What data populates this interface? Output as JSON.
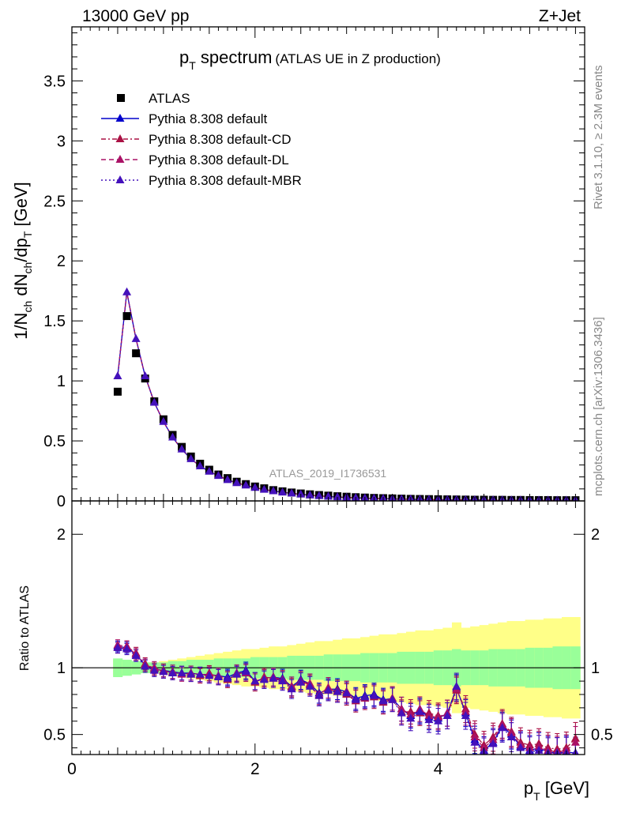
{
  "header": {
    "left": "13000 GeV pp",
    "right": "Z+Jet"
  },
  "title": {
    "main": "p",
    "sub": "T",
    "rest": " spectrum",
    "small": "(ATLAS UE in Z production)"
  },
  "side_labels": {
    "rivet": "Rivet 3.1.10, ≥ 2.3M events",
    "mcplots": "mcplots.cern.ch [arXiv:1306.3436]"
  },
  "watermark": "ATLAS_2019_I1736531",
  "axes": {
    "ylabel_top": "1/N_ch dN_ch/dp_T [GeV]",
    "ylabel_bottom": "Ratio to ATLAS",
    "xlabel": "p_T [GeV]",
    "x_ticks": [
      "0",
      "2",
      "4"
    ],
    "y_ticks_top": [
      "0",
      "0.5",
      "1",
      "1.5",
      "2",
      "2.5",
      "3",
      "3.5"
    ],
    "y_ticks_bottom": [
      "0.5",
      "1",
      "2"
    ]
  },
  "legend": [
    {
      "label": "ATLAS",
      "color": "#000000",
      "marker": "square",
      "dash": ""
    },
    {
      "label": "Pythia 8.308 default",
      "color": "#0000cc",
      "marker": "triangle",
      "dash": ""
    },
    {
      "label": "Pythia 8.308 default-CD",
      "color": "#aa1144",
      "marker": "triangle",
      "dash": "6,3,2,3"
    },
    {
      "label": "Pythia 8.308 default-DL",
      "color": "#aa1166",
      "marker": "triangle",
      "dash": "6,4"
    },
    {
      "label": "Pythia 8.308 default-MBR",
      "color": "#4411bb",
      "marker": "triangle",
      "dash": "2,3"
    }
  ],
  "chart_data": {
    "type": "scatter",
    "xlim": [
      0,
      5.6
    ],
    "ylim_top": [
      0,
      3.95
    ],
    "ylim_bottom": [
      0.35,
      2.25
    ],
    "x": [
      0.5,
      0.6,
      0.7,
      0.8,
      0.9,
      1.0,
      1.1,
      1.2,
      1.3,
      1.4,
      1.5,
      1.6,
      1.7,
      1.8,
      1.9,
      2.0,
      2.1,
      2.2,
      2.3,
      2.4,
      2.5,
      2.6,
      2.7,
      2.8,
      2.9,
      3.0,
      3.1,
      3.2,
      3.3,
      3.4,
      3.5,
      3.6,
      3.7,
      3.8,
      3.9,
      4.0,
      4.1,
      4.2,
      4.3,
      4.4,
      4.5,
      4.6,
      4.7,
      4.8,
      4.9,
      5.0,
      5.1,
      5.2,
      5.3,
      5.4,
      5.5
    ],
    "atlas": [
      0.91,
      1.54,
      1.23,
      1.02,
      0.83,
      0.68,
      0.55,
      0.45,
      0.37,
      0.31,
      0.26,
      0.22,
      0.19,
      0.16,
      0.14,
      0.12,
      0.105,
      0.09,
      0.08,
      0.07,
      0.062,
      0.055,
      0.049,
      0.044,
      0.039,
      0.035,
      0.031,
      0.028,
      0.025,
      0.023,
      0.021,
      0.019,
      0.017,
      0.016,
      0.015,
      0.014,
      0.013,
      0.012,
      0.011,
      0.01,
      0.01,
      0.009,
      0.009,
      0.008,
      0.008,
      0.007,
      0.007,
      0.007,
      0.006,
      0.006,
      0.006
    ],
    "mc_top": [
      1.04,
      1.74,
      1.35,
      1.04,
      0.82,
      0.66,
      0.53,
      0.43,
      0.35,
      0.29,
      0.245,
      0.21,
      0.175,
      0.15,
      0.13,
      0.11,
      0.095,
      0.082,
      0.072,
      0.063,
      0.055,
      0.048,
      0.042,
      0.037,
      0.033,
      0.029,
      0.026,
      0.023,
      0.021,
      0.019,
      0.017,
      0.015,
      0.014,
      0.012,
      0.011,
      0.01,
      0.009,
      0.009,
      0.008,
      0.007,
      0.007,
      0.006,
      0.006,
      0.005,
      0.005,
      0.005,
      0.004,
      0.004,
      0.004,
      0.004,
      0.003
    ],
    "ratio_series": [
      {
        "name": "Pythia 8.308 default",
        "values": [
          1.16,
          1.15,
          1.1,
          1.02,
          0.99,
          0.98,
          0.97,
          0.96,
          0.96,
          0.95,
          0.95,
          0.94,
          0.93,
          0.96,
          0.98,
          0.9,
          0.92,
          0.93,
          0.92,
          0.86,
          0.91,
          0.88,
          0.81,
          0.84,
          0.84,
          0.82,
          0.77,
          0.79,
          0.8,
          0.76,
          0.77,
          0.69,
          0.64,
          0.68,
          0.63,
          0.62,
          0.66,
          0.85,
          0.66,
          0.46,
          0.38,
          0.44,
          0.56,
          0.5,
          0.41,
          0.38,
          0.4,
          0.37,
          0.36,
          0.37,
          0.36
        ]
      },
      {
        "name": "Pythia 8.308 default-CD",
        "values": [
          1.15,
          1.16,
          1.11,
          1.03,
          0.99,
          0.98,
          0.96,
          0.96,
          0.95,
          0.94,
          0.96,
          0.93,
          0.91,
          0.95,
          0.97,
          0.89,
          0.93,
          0.92,
          0.91,
          0.85,
          0.9,
          0.87,
          0.79,
          0.83,
          0.83,
          0.8,
          0.75,
          0.77,
          0.78,
          0.74,
          0.76,
          0.67,
          0.67,
          0.66,
          0.66,
          0.64,
          0.64,
          0.83,
          0.69,
          0.5,
          0.42,
          0.48,
          0.58,
          0.52,
          0.44,
          0.42,
          0.43,
          0.4,
          0.39,
          0.4,
          0.47
        ]
      },
      {
        "name": "Pythia 8.308 default-DL",
        "values": [
          1.17,
          1.16,
          1.1,
          1.02,
          1.0,
          0.97,
          0.97,
          0.95,
          0.96,
          0.95,
          0.95,
          0.94,
          0.92,
          0.96,
          0.96,
          0.9,
          0.92,
          0.93,
          0.91,
          0.86,
          0.9,
          0.88,
          0.8,
          0.85,
          0.82,
          0.82,
          0.76,
          0.78,
          0.79,
          0.75,
          0.77,
          0.69,
          0.65,
          0.69,
          0.64,
          0.63,
          0.66,
          0.84,
          0.67,
          0.48,
          0.4,
          0.46,
          0.57,
          0.51,
          0.42,
          0.4,
          0.41,
          0.38,
          0.37,
          0.38,
          0.44
        ]
      },
      {
        "name": "Pythia 8.308 default-MBR",
        "values": [
          1.15,
          1.14,
          1.09,
          1.01,
          0.98,
          0.97,
          0.96,
          0.96,
          0.95,
          0.95,
          0.94,
          0.93,
          0.92,
          0.95,
          0.97,
          0.9,
          0.91,
          0.92,
          0.9,
          0.84,
          0.89,
          0.86,
          0.79,
          0.83,
          0.82,
          0.81,
          0.76,
          0.78,
          0.79,
          0.75,
          0.76,
          0.66,
          0.62,
          0.67,
          0.61,
          0.6,
          0.64,
          0.86,
          0.64,
          0.44,
          0.37,
          0.43,
          0.55,
          0.48,
          0.4,
          0.37,
          0.38,
          0.36,
          0.36,
          0.36,
          0.36
        ]
      }
    ],
    "band_inner": [
      0.07,
      0.06,
      0.05,
      0.04,
      0.04,
      0.04,
      0.05,
      0.05,
      0.06,
      0.06,
      0.06,
      0.07,
      0.07,
      0.07,
      0.07,
      0.08,
      0.08,
      0.08,
      0.08,
      0.09,
      0.09,
      0.09,
      0.09,
      0.1,
      0.1,
      0.1,
      0.1,
      0.11,
      0.11,
      0.11,
      0.11,
      0.12,
      0.12,
      0.12,
      0.12,
      0.13,
      0.13,
      0.14,
      0.13,
      0.13,
      0.13,
      0.14,
      0.14,
      0.14,
      0.14,
      0.15,
      0.15,
      0.15,
      0.16,
      0.16,
      0.16
    ],
    "band_outer": [
      0.06,
      0.05,
      0.04,
      0.04,
      0.04,
      0.05,
      0.06,
      0.07,
      0.08,
      0.09,
      0.1,
      0.11,
      0.12,
      0.13,
      0.14,
      0.14,
      0.15,
      0.16,
      0.16,
      0.17,
      0.18,
      0.19,
      0.2,
      0.2,
      0.21,
      0.22,
      0.22,
      0.23,
      0.24,
      0.25,
      0.25,
      0.26,
      0.27,
      0.28,
      0.28,
      0.29,
      0.3,
      0.34,
      0.3,
      0.31,
      0.32,
      0.33,
      0.34,
      0.35,
      0.35,
      0.36,
      0.36,
      0.37,
      0.37,
      0.38,
      0.38
    ],
    "ratio_err": 0.04
  }
}
